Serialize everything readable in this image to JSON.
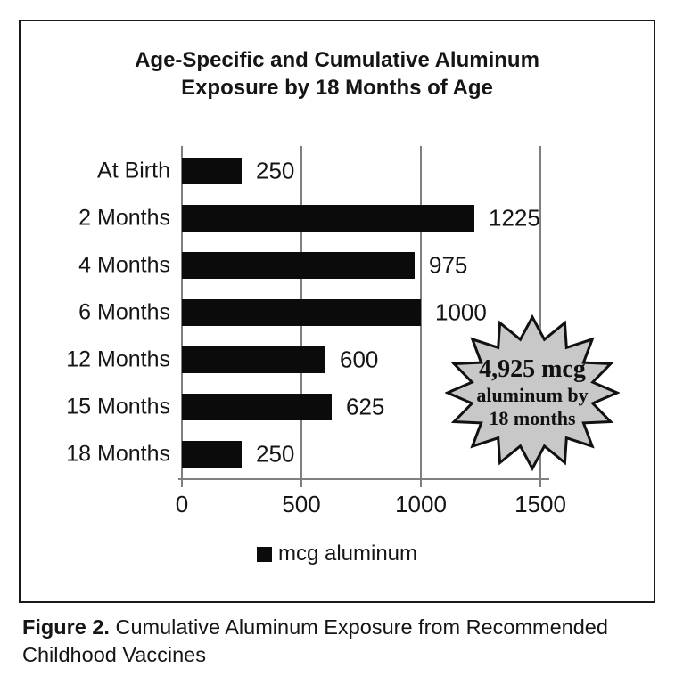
{
  "chart_data": {
    "type": "bar",
    "orientation": "horizontal",
    "title": "Age-Specific and Cumulative Aluminum Exposure by 18 Months of Age",
    "categories": [
      "At Birth",
      "2 Months",
      "4 Months",
      "6 Months",
      "12 Months",
      "15 Months",
      "18 Months"
    ],
    "values": [
      250,
      1225,
      975,
      1000,
      600,
      625,
      250
    ],
    "series_label": "mcg aluminum",
    "x_ticks": [
      0,
      500,
      1000,
      1500
    ],
    "xlim": [
      0,
      1560
    ],
    "grid": true,
    "legend_position": "bottom",
    "bar_color": "#0b0b0b",
    "gridline_color": "#7f7f7f"
  },
  "badge": {
    "lines": [
      "4,925 mcg",
      "aluminum by",
      "18 months"
    ],
    "fill": "#c8c8c8",
    "border": "#111111"
  },
  "legend": {
    "label": "mcg aluminum"
  },
  "caption": {
    "prefix": "Figure 2.",
    "text": " Cumulative Aluminum Exposure from Recommended Childhood Vaccines"
  }
}
